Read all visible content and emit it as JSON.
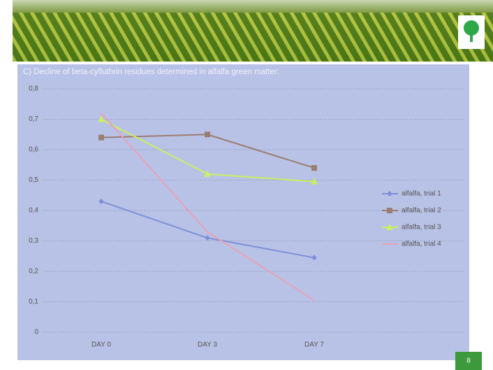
{
  "chart_data": {
    "type": "line",
    "title": "C) Decline of beta-cyfluthrin residues determined in alfalfa green matter:",
    "categories": [
      "DAY 0",
      "DAY 3",
      "DAY 7"
    ],
    "series": [
      {
        "name": "alfalfa, trial 1",
        "color": "#8090d8",
        "marker": "diamond",
        "values": [
          0.43,
          0.31,
          0.245
        ]
      },
      {
        "name": "alfalfa, trial 2",
        "color": "#9a7e70",
        "marker": "square",
        "values": [
          0.64,
          0.65,
          0.54
        ]
      },
      {
        "name": "alfalfa, trial 3",
        "color": "#c8f060",
        "marker": "triangle",
        "values": [
          0.7,
          0.52,
          0.495
        ]
      },
      {
        "name": "alfalfa, trial 4",
        "color": "#e8a2b6",
        "marker": "none",
        "values": [
          0.72,
          0.33,
          0.105
        ]
      }
    ],
    "ylim": [
      0,
      0.8
    ],
    "yticks": [
      0,
      {
        "value": 0.1,
        "label": "0,1"
      },
      {
        "value": 0.2,
        "label": "0,2"
      },
      {
        "value": 0.3,
        "label": "0,3"
      },
      {
        "value": 0.4,
        "label": "0,4"
      },
      {
        "value": 0.5,
        "label": "0,5"
      },
      {
        "value": 0.6,
        "label": "0,6"
      },
      {
        "value": 0.7,
        "label": "0,7"
      },
      {
        "value": 0.8,
        "label": "0,8"
      }
    ],
    "grid": true,
    "legend": "right"
  },
  "slide": {
    "page_number": "8"
  }
}
